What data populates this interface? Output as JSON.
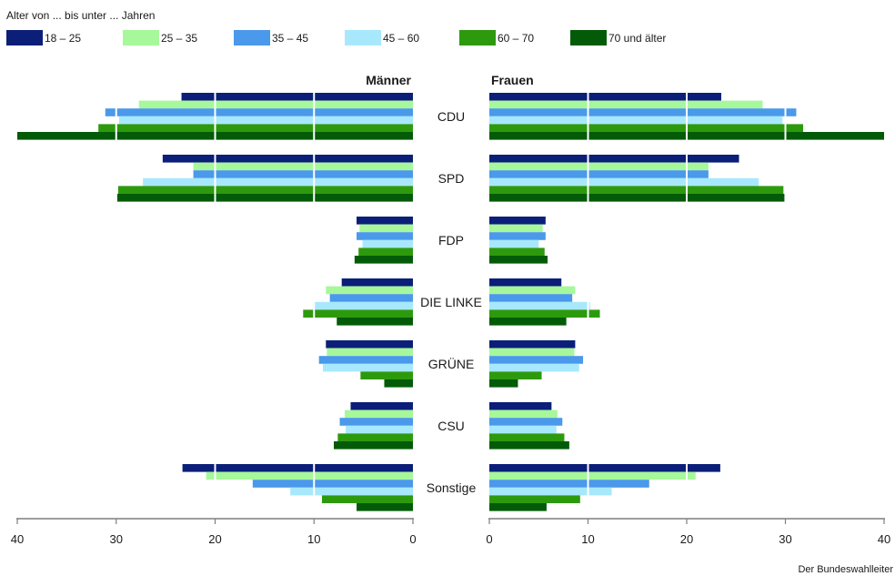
{
  "chart_data": {
    "type": "bar",
    "orientation": "horizontal-butterfly",
    "legend": {
      "title": "Alter von ... bis unter ... Jahren",
      "placement": "top-left"
    },
    "panels": {
      "left": {
        "title": "Männer"
      },
      "right": {
        "title": "Frauen"
      }
    },
    "categories": [
      "CDU",
      "SPD",
      "FDP",
      "DIE LINKE",
      "GRÜNE",
      "CSU",
      "Sonstige"
    ],
    "series": [
      {
        "name": "18 – 25",
        "color": "#0b1f78",
        "maenner": [
          23.4,
          25.3,
          5.7,
          7.2,
          8.8,
          6.3,
          23.3
        ],
        "frauen": [
          23.5,
          25.3,
          5.7,
          7.3,
          8.7,
          6.3,
          23.4
        ]
      },
      {
        "name": "25 – 35",
        "color": "#a6f89a",
        "maenner": [
          27.7,
          22.2,
          5.4,
          8.8,
          8.7,
          6.9,
          20.9
        ],
        "frauen": [
          27.7,
          22.2,
          5.4,
          8.7,
          8.6,
          6.9,
          20.9
        ]
      },
      {
        "name": "35 – 45",
        "color": "#4a99ea",
        "maenner": [
          31.1,
          22.2,
          5.7,
          8.4,
          9.5,
          7.4,
          16.2
        ],
        "frauen": [
          31.1,
          22.2,
          5.7,
          8.4,
          9.5,
          7.4,
          16.2
        ]
      },
      {
        "name": "45 – 60",
        "color": "#a8e8fc",
        "maenner": [
          29.7,
          27.3,
          5.1,
          10.1,
          9.1,
          6.8,
          12.4
        ],
        "frauen": [
          29.7,
          27.3,
          5.0,
          10.2,
          9.1,
          6.8,
          12.4
        ]
      },
      {
        "name": "60 – 70",
        "color": "#2d9a0e",
        "maenner": [
          31.8,
          29.8,
          5.5,
          11.1,
          5.3,
          7.6,
          9.2
        ],
        "frauen": [
          31.8,
          29.8,
          5.6,
          11.2,
          5.3,
          7.6,
          9.2
        ]
      },
      {
        "name": "70 und älter",
        "color": "#035b08",
        "maenner": [
          40.0,
          29.9,
          5.9,
          7.7,
          2.9,
          8.0,
          5.7
        ],
        "frauen": [
          40.0,
          29.9,
          5.9,
          7.8,
          2.9,
          8.1,
          5.8
        ]
      }
    ],
    "xlim": [
      0,
      40
    ],
    "ticks": [
      "40",
      "30",
      "20",
      "10",
      "0",
      "0",
      "10",
      "20",
      "30",
      "40"
    ],
    "tick_values": [
      40,
      30,
      20,
      10,
      0
    ],
    "gridlines": [
      10,
      20,
      30
    ],
    "gridline_color": "#ffffff",
    "axis_color": "#7f7f7f"
  },
  "source": "Der Bundeswahlleiter"
}
